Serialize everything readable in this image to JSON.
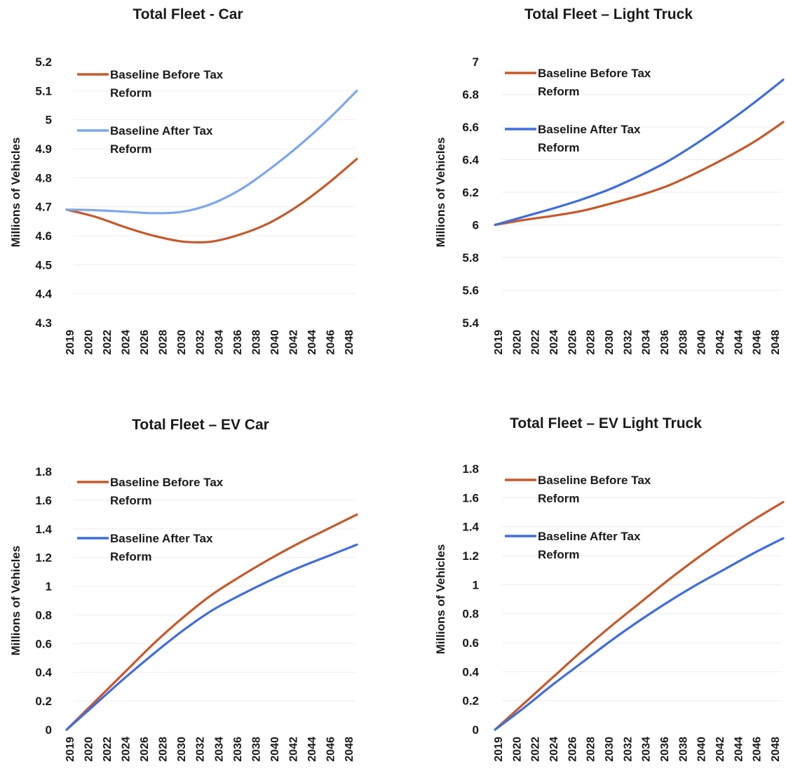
{
  "chart_data": [
    {
      "type": "line",
      "title": "Total Fleet - Car",
      "ylabel": "Millions of Vehicles",
      "xlabel": "",
      "ylim": [
        4.3,
        5.2
      ],
      "yticks": [
        "5.2",
        "5.1",
        "5",
        "4.9",
        "4.8",
        "4.7",
        "4.6",
        "4.5",
        "4.4",
        "4.3"
      ],
      "xticks": [
        "2019",
        "2020",
        "2022",
        "2024",
        "2026",
        "2028",
        "2030",
        "2032",
        "2034",
        "2036",
        "2038",
        "2040",
        "2042",
        "2044",
        "2046",
        "2048"
      ],
      "x": [
        2019,
        2022,
        2025,
        2028,
        2031,
        2034,
        2037,
        2040,
        2043,
        2046,
        2049
      ],
      "legend_position": "top-left",
      "series": [
        {
          "name_lines": [
            "Baseline Before Tax",
            "Reform"
          ],
          "color": "#c8582a",
          "values": [
            4.69,
            4.665,
            4.63,
            4.6,
            4.58,
            4.58,
            4.605,
            4.645,
            4.705,
            4.78,
            4.865
          ]
        },
        {
          "name_lines": [
            "Baseline After Tax",
            "Reform"
          ],
          "color": "#7ca6f0",
          "values": [
            4.69,
            4.688,
            4.683,
            4.678,
            4.683,
            4.71,
            4.76,
            4.83,
            4.91,
            5.0,
            5.1
          ]
        }
      ]
    },
    {
      "type": "line",
      "title": "Total Fleet – Light Truck",
      "ylabel": "Millions of Vehicles",
      "xlabel": "",
      "ylim": [
        5.4,
        7.0
      ],
      "yticks": [
        "7",
        "6.8",
        "6.6",
        "6.4",
        "6.2",
        "6",
        "5.8",
        "5.6",
        "5.4"
      ],
      "xticks": [
        "2019",
        "2020",
        "2022",
        "2024",
        "2026",
        "2028",
        "2030",
        "2032",
        "2034",
        "2036",
        "2038",
        "2040",
        "2042",
        "2044",
        "2046",
        "2048"
      ],
      "x": [
        2019,
        2022,
        2025,
        2028,
        2031,
        2034,
        2037,
        2040,
        2043,
        2046,
        2049
      ],
      "legend_position": "top-left",
      "series": [
        {
          "name_lines": [
            "Baseline Before Tax",
            "Reform"
          ],
          "color": "#c8582a",
          "values": [
            6.0,
            6.03,
            6.055,
            6.085,
            6.13,
            6.18,
            6.24,
            6.32,
            6.41,
            6.51,
            6.63
          ]
        },
        {
          "name_lines": [
            "Baseline After Tax",
            "Reform"
          ],
          "color": "#3f6de0",
          "values": [
            6.0,
            6.05,
            6.1,
            6.155,
            6.22,
            6.3,
            6.39,
            6.5,
            6.62,
            6.75,
            6.89
          ]
        }
      ]
    },
    {
      "type": "line",
      "title": "Total Fleet – EV Car",
      "ylabel": "Millions of Vehicles",
      "xlabel": "",
      "ylim": [
        0,
        1.8
      ],
      "yticks": [
        "1.8",
        "1.6",
        "1.4",
        "1.2",
        "1",
        "0.8",
        "0.6",
        "0.4",
        "0.2",
        "0"
      ],
      "xticks": [
        "2019",
        "2020",
        "2022",
        "2024",
        "2026",
        "2028",
        "2030",
        "2032",
        "2034",
        "2036",
        "2038",
        "2040",
        "2042",
        "2044",
        "2046",
        "2048"
      ],
      "x": [
        2019,
        2022,
        2025,
        2028,
        2031,
        2034,
        2037,
        2040,
        2043,
        2046,
        2049
      ],
      "legend_position": "top-left",
      "series": [
        {
          "name_lines": [
            "Baseline Before Tax",
            "Reform"
          ],
          "color": "#c8582a",
          "values": [
            0.0,
            0.2,
            0.4,
            0.6,
            0.78,
            0.94,
            1.07,
            1.19,
            1.3,
            1.4,
            1.5
          ]
        },
        {
          "name_lines": [
            "Baseline After Tax",
            "Reform"
          ],
          "color": "#3f6de0",
          "values": [
            0.0,
            0.18,
            0.36,
            0.53,
            0.69,
            0.83,
            0.94,
            1.04,
            1.13,
            1.21,
            1.29
          ]
        }
      ]
    },
    {
      "type": "line",
      "title": "Total Fleet – EV Light Truck",
      "ylabel": "Millions of Vehicles",
      "xlabel": "",
      "ylim": [
        0,
        1.8
      ],
      "yticks": [
        "1.8",
        "1.6",
        "1.4",
        "1.2",
        "1",
        "0.8",
        "0.6",
        "0.4",
        "0.2",
        "0"
      ],
      "xticks": [
        "2019",
        "2020",
        "2022",
        "2024",
        "2026",
        "2028",
        "2030",
        "2032",
        "2034",
        "2036",
        "2038",
        "2040",
        "2042",
        "2044",
        "2046",
        "2048"
      ],
      "x": [
        2019,
        2022,
        2025,
        2028,
        2031,
        2034,
        2037,
        2040,
        2043,
        2046,
        2049
      ],
      "legend_position": "top-left",
      "series": [
        {
          "name_lines": [
            "Baseline Before Tax",
            "Reform"
          ],
          "color": "#c8582a",
          "values": [
            0.0,
            0.18,
            0.36,
            0.54,
            0.71,
            0.87,
            1.03,
            1.18,
            1.32,
            1.45,
            1.57
          ]
        },
        {
          "name_lines": [
            "Baseline After Tax",
            "Reform"
          ],
          "color": "#3f6de0",
          "values": [
            0.0,
            0.15,
            0.31,
            0.46,
            0.61,
            0.75,
            0.88,
            1.0,
            1.11,
            1.22,
            1.32
          ]
        }
      ]
    }
  ]
}
